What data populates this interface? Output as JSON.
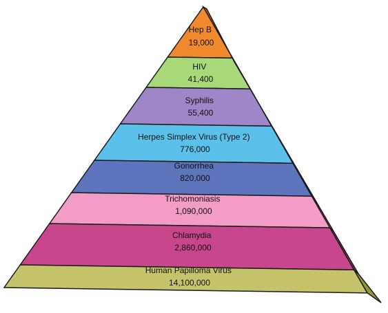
{
  "pyramid": {
    "layers": [
      {
        "name": "Hep B",
        "count": "19,000",
        "front_color": "#F08A2C",
        "side_color": "#C96C14"
      },
      {
        "name": "HIV",
        "count": "41,400",
        "front_color": "#A8D878",
        "side_color": "#7FB24E"
      },
      {
        "name": "Syphilis",
        "count": "55,400",
        "front_color": "#9E86C8",
        "side_color": "#6E58A0"
      },
      {
        "name": "Herpes Simplex Virus (Type 2)",
        "count": "776,000",
        "front_color": "#5BC0EA",
        "side_color": "#2B93C6"
      },
      {
        "name": "Gonorrhea",
        "count": "820,000",
        "front_color": "#5E74BC",
        "side_color": "#3C4F93"
      },
      {
        "name": "Trichomoniasis",
        "count": "1,090,000",
        "front_color": "#F29CC6",
        "side_color": "#C96E9C"
      },
      {
        "name": "Chlamydia",
        "count": "2,860,000",
        "front_color": "#C8468C",
        "side_color": "#962866"
      },
      {
        "name": "Human Papilloma Virus",
        "count": "14,100,000",
        "front_color": "#C6C46A",
        "side_color": "#97943C"
      }
    ]
  }
}
